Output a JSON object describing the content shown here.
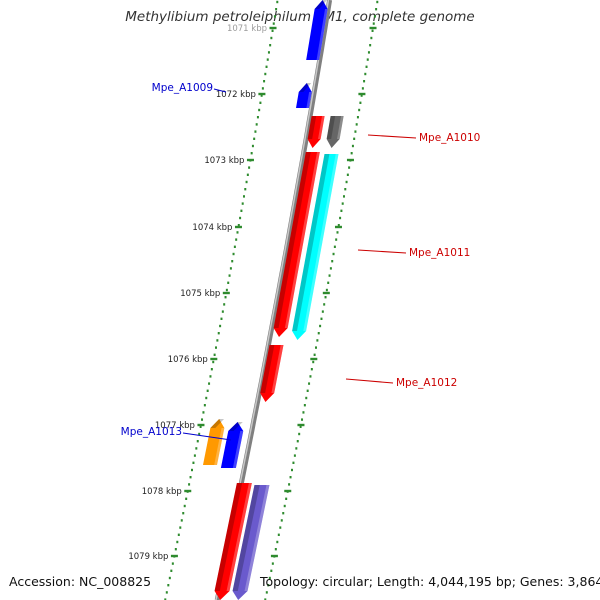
{
  "title": "Methylibium petroleiphilum PM1, complete genome",
  "footer": {
    "accession": "Accession: NC_008825",
    "topology": "Topology: circular; Length: 4,044,195 bp; Genes: 3,864"
  },
  "colors": {
    "backbone": "#808080",
    "tick_dots": "#2e8b2e",
    "label_forward": "#0000cc",
    "label_reverse": "#cc0000",
    "gene_red": "#ff0000",
    "gene_blue": "#0000ff",
    "gene_cyan": "#00ffff",
    "gene_gray": "#666666",
    "gene_orange": "#ff9900",
    "gene_purple": "#6a5acd"
  },
  "tick_labels": [
    "1071 kbp",
    "1072 kbp",
    "1073 kbp",
    "1074 kbp",
    "1075 kbp",
    "1076 kbp",
    "1077 kbp",
    "1078 kbp",
    "1079 kbp"
  ],
  "genes": [
    {
      "name": "",
      "color": "blue",
      "strand": "forward"
    },
    {
      "name": "Mpe_A1009",
      "color": "blue",
      "strand": "forward"
    },
    {
      "name": "Mpe_A1010",
      "color": "red",
      "strand": "reverse"
    },
    {
      "name": "",
      "color": "gray",
      "strand": "reverse"
    },
    {
      "name": "Mpe_A1011",
      "color": "red",
      "strand": "reverse"
    },
    {
      "name": "",
      "color": "cyan",
      "strand": "reverse"
    },
    {
      "name": "Mpe_A1012",
      "color": "red",
      "strand": "reverse"
    },
    {
      "name": "Mpe_A1013",
      "color": "orange",
      "strand": "forward"
    },
    {
      "name": "",
      "color": "blue",
      "strand": "forward"
    },
    {
      "name": "",
      "color": "red",
      "strand": "reverse"
    },
    {
      "name": "",
      "color": "purple",
      "strand": "reverse"
    }
  ]
}
